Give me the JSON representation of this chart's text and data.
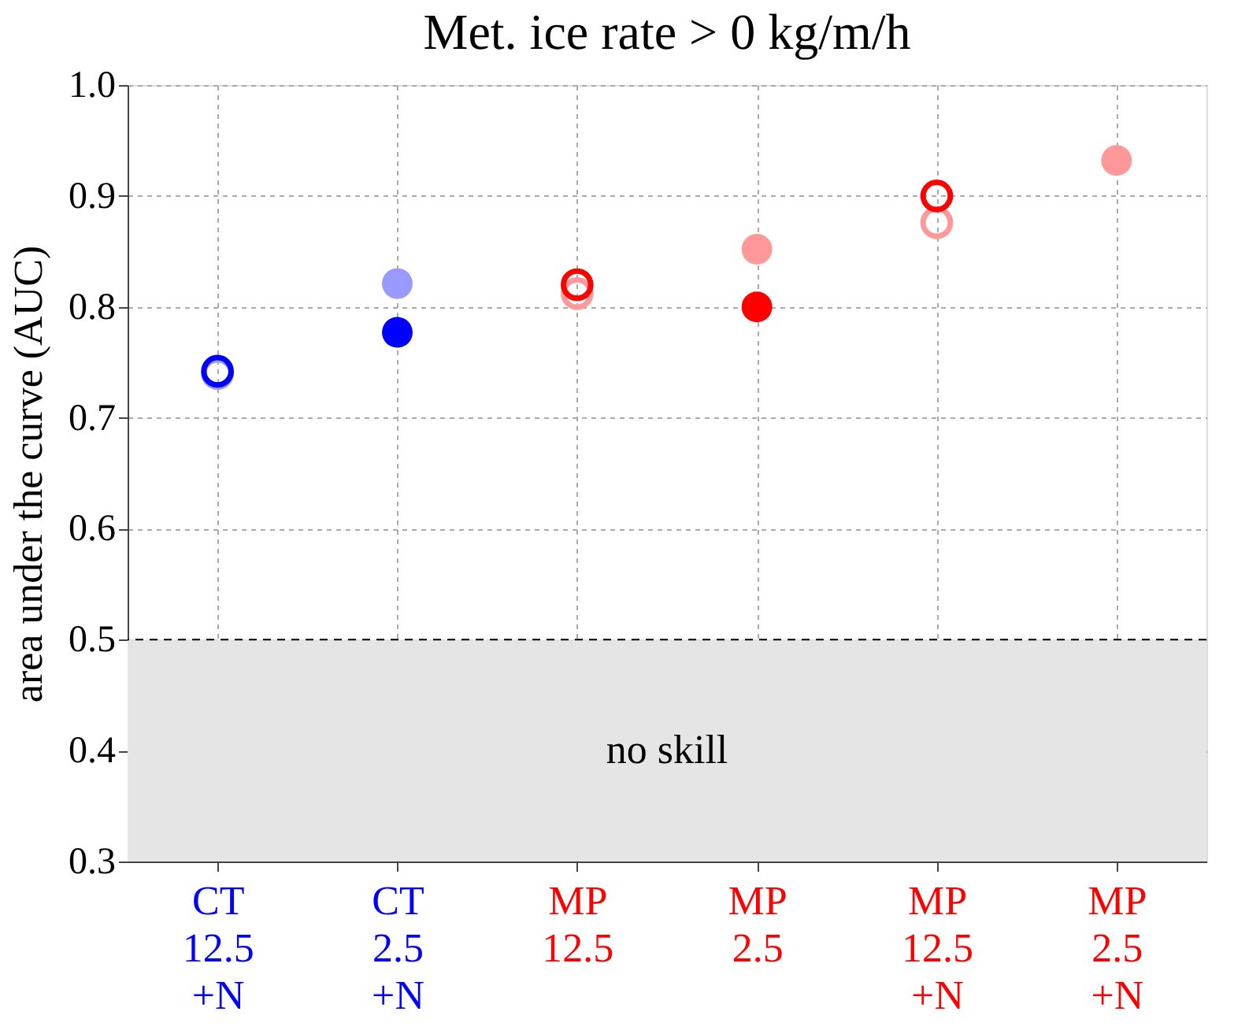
{
  "chart_data": {
    "type": "scatter",
    "title": "Met. ice rate > 0 kg/m/h",
    "ylabel": "area under the curve (AUC)",
    "categories": [
      "CT\n12.5\n+N",
      "CT\n2.5\n+N",
      "MP\n12.5",
      "MP\n2.5",
      "MP\n12.5\n+N",
      "MP\n2.5\n+N"
    ],
    "series": [
      {
        "colors": [
          "#0000ff",
          "#0000ff",
          "#ff0000",
          "#ff0000",
          "#ff0000",
          "#ff0000"
        ],
        "values": [
          null,
          0.777,
          null,
          0.8,
          null,
          null
        ]
      },
      {
        "colors": [
          "#9999ff",
          "#9999ff",
          "#ff9999",
          "#ff9999",
          "#ff9999",
          "#ff9999"
        ],
        "values": [
          null,
          0.821,
          null,
          0.852,
          null,
          0.932
        ]
      },
      {
        "colors": [
          "#9999ff",
          "#9999ff",
          "#ff9999",
          "#ff9999",
          "#ff9999",
          "#ff9999"
        ],
        "values": [
          0.74,
          null,
          0.812,
          null,
          0.876,
          null
        ],
        "marker": "circle-open"
      },
      {
        "colors": [
          "#0000ff",
          "#0000ff",
          "#ff0000",
          "#ff0000",
          "#ff0000",
          "#ff0000"
        ],
        "values": [
          0.742,
          null,
          0.82,
          null,
          0.9,
          null
        ],
        "marker": "circle-open"
      }
    ],
    "marker": "circle",
    "ylim": [
      0.3,
      1.0
    ],
    "yticks": [
      0.3,
      0.4,
      0.5,
      0.6,
      0.7,
      0.8,
      0.9,
      {
        "value": 1.0,
        "label": "1.0"
      }
    ],
    "ref_lines": [
      {
        "axis": "y",
        "value": 0.5,
        "color": "#000000",
        "line_style": "dashed"
      }
    ],
    "bands": [
      {
        "axis": "y",
        "from": 0.3,
        "to": 0.5,
        "label": "no skill",
        "color": "#e5e5e5"
      }
    ],
    "grid": true
  }
}
